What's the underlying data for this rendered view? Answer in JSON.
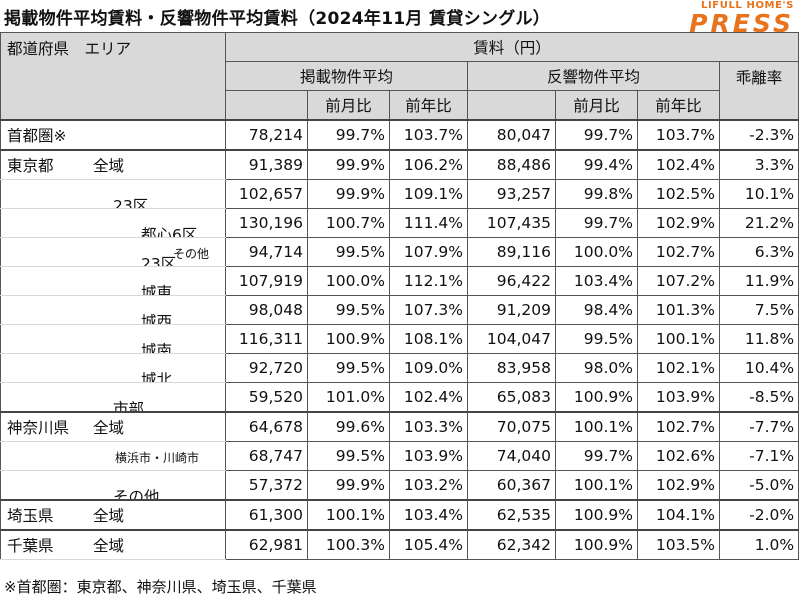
{
  "title": "掲載物件平均賃料・反響物件平均賃料（2024年11月 賃貸シングル）",
  "logo": {
    "top": "LIFULL HOME'S",
    "main": "PRESS"
  },
  "header": {
    "left": "都道府県　エリア",
    "rent": "賃料（円）",
    "listing": "掲載物件平均",
    "response": "反響物件平均",
    "gap": "乖離率",
    "mom": "前月比",
    "yoy": "前年比"
  },
  "rows": [
    {
      "pref": "首都圏※",
      "area": "",
      "level": 0,
      "listing": "78,214",
      "l_mom": "99.7%",
      "l_yoy": "103.7%",
      "response": "80,047",
      "r_mom": "99.7%",
      "r_yoy": "103.7%",
      "gap": "-2.3%",
      "group_start": true
    },
    {
      "pref": "東京都",
      "area": "全域",
      "level": 0,
      "listing": "91,389",
      "l_mom": "99.9%",
      "l_yoy": "106.2%",
      "response": "88,486",
      "r_mom": "99.4%",
      "r_yoy": "102.4%",
      "gap": "3.3%",
      "group_start": true
    },
    {
      "pref": "",
      "area": "23区",
      "level": 1,
      "listing": "102,657",
      "l_mom": "99.9%",
      "l_yoy": "109.1%",
      "response": "93,257",
      "r_mom": "99.8%",
      "r_yoy": "102.5%",
      "gap": "10.1%"
    },
    {
      "pref": "",
      "area": "都心6区",
      "level": 2,
      "listing": "130,196",
      "l_mom": "100.7%",
      "l_yoy": "111.4%",
      "response": "107,435",
      "r_mom": "99.7%",
      "r_yoy": "102.9%",
      "gap": "21.2%"
    },
    {
      "pref": "",
      "area": "23区",
      "area_small": "その他",
      "level": 2,
      "listing": "94,714",
      "l_mom": "99.5%",
      "l_yoy": "107.9%",
      "response": "89,116",
      "r_mom": "100.0%",
      "r_yoy": "102.7%",
      "gap": "6.3%"
    },
    {
      "pref": "",
      "area": "城東",
      "level": 2,
      "listing": "107,919",
      "l_mom": "100.0%",
      "l_yoy": "112.1%",
      "response": "96,422",
      "r_mom": "103.4%",
      "r_yoy": "107.2%",
      "gap": "11.9%"
    },
    {
      "pref": "",
      "area": "城西",
      "level": 2,
      "listing": "98,048",
      "l_mom": "99.5%",
      "l_yoy": "107.3%",
      "response": "91,209",
      "r_mom": "98.4%",
      "r_yoy": "101.3%",
      "gap": "7.5%"
    },
    {
      "pref": "",
      "area": "城南",
      "level": 2,
      "listing": "116,311",
      "l_mom": "100.9%",
      "l_yoy": "108.1%",
      "response": "104,047",
      "r_mom": "99.5%",
      "r_yoy": "100.1%",
      "gap": "11.8%"
    },
    {
      "pref": "",
      "area": "城北",
      "level": 2,
      "listing": "92,720",
      "l_mom": "99.5%",
      "l_yoy": "109.0%",
      "response": "83,958",
      "r_mom": "98.0%",
      "r_yoy": "102.1%",
      "gap": "10.4%"
    },
    {
      "pref": "",
      "area": "市部",
      "level": 1,
      "listing": "59,520",
      "l_mom": "101.0%",
      "l_yoy": "102.4%",
      "response": "65,083",
      "r_mom": "100.9%",
      "r_yoy": "103.9%",
      "gap": "-8.5%"
    },
    {
      "pref": "神奈川県",
      "area": "全域",
      "level": 0,
      "listing": "64,678",
      "l_mom": "99.6%",
      "l_yoy": "103.3%",
      "response": "70,075",
      "r_mom": "100.1%",
      "r_yoy": "102.7%",
      "gap": "-7.7%",
      "group_start": true
    },
    {
      "pref": "",
      "area_small_only": "横浜市・川崎市",
      "level": 1,
      "listing": "68,747",
      "l_mom": "99.5%",
      "l_yoy": "103.9%",
      "response": "74,040",
      "r_mom": "99.7%",
      "r_yoy": "102.6%",
      "gap": "-7.1%"
    },
    {
      "pref": "",
      "area": "その他",
      "level": 1,
      "listing": "57,372",
      "l_mom": "99.9%",
      "l_yoy": "103.2%",
      "response": "60,367",
      "r_mom": "100.1%",
      "r_yoy": "102.9%",
      "gap": "-5.0%"
    },
    {
      "pref": "埼玉県",
      "area": "全域",
      "level": 0,
      "listing": "61,300",
      "l_mom": "100.1%",
      "l_yoy": "103.4%",
      "response": "62,535",
      "r_mom": "100.9%",
      "r_yoy": "104.1%",
      "gap": "-2.0%",
      "group_start": true
    },
    {
      "pref": "千葉県",
      "area": "全域",
      "level": 0,
      "listing": "62,981",
      "l_mom": "100.3%",
      "l_yoy": "105.4%",
      "response": "62,342",
      "r_mom": "100.9%",
      "r_yoy": "103.5%",
      "gap": "1.0%",
      "group_start": true
    }
  ],
  "note": "※首都圏：東京都、神奈川県、埼玉県、千葉県"
}
